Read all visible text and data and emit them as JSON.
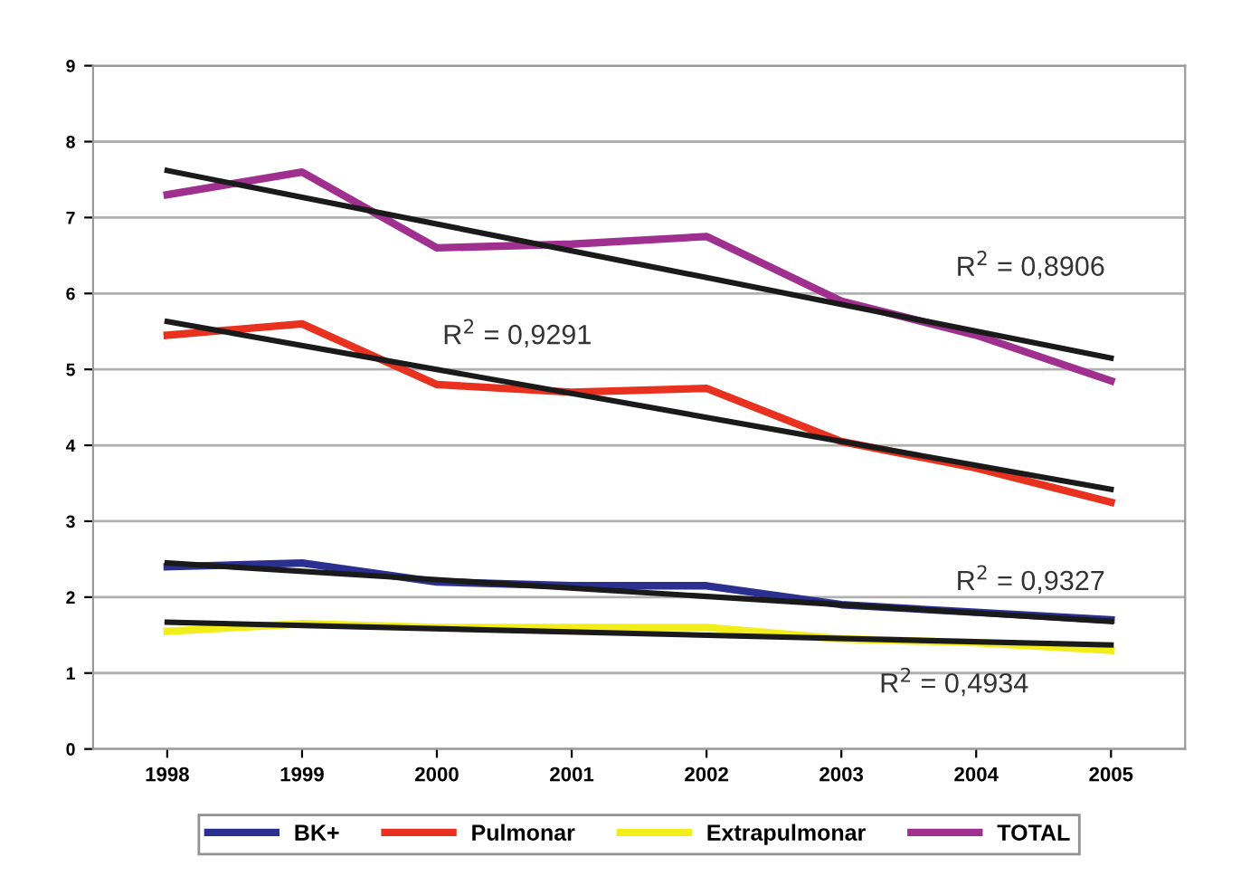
{
  "chart_data": {
    "type": "line",
    "categories": [
      "1998",
      "1999",
      "2000",
      "2001",
      "2002",
      "2003",
      "2004",
      "2005"
    ],
    "series": [
      {
        "name": "BK+",
        "color": "#2b2f8f",
        "values": [
          2.4,
          2.45,
          2.2,
          2.15,
          2.15,
          1.9,
          1.8,
          1.7
        ]
      },
      {
        "name": "Pulmonar",
        "color": "#e8311e",
        "values": [
          5.45,
          5.6,
          4.8,
          4.7,
          4.75,
          4.05,
          3.7,
          3.25
        ]
      },
      {
        "name": "Extrapulmonar",
        "color": "#f2ee1a",
        "values": [
          1.55,
          1.65,
          1.6,
          1.6,
          1.6,
          1.45,
          1.4,
          1.3
        ]
      },
      {
        "name": "TOTAL",
        "color": "#a0308f",
        "values": [
          7.3,
          7.6,
          6.6,
          6.65,
          6.75,
          5.9,
          5.45,
          4.85
        ]
      },
      {
        "color": "#1a1a1a",
        "values": [
          7.62,
          null,
          null,
          null,
          null,
          null,
          null,
          5.15
        ]
      },
      {
        "color": "#1a1a1a",
        "values": [
          5.63,
          null,
          null,
          null,
          null,
          null,
          null,
          3.42
        ]
      },
      {
        "color": "#1a1a1a",
        "values": [
          2.45,
          null,
          null,
          null,
          null,
          null,
          null,
          1.68
        ]
      },
      {
        "color": "#1a1a1a",
        "values": [
          1.67,
          null,
          null,
          null,
          null,
          null,
          null,
          1.37
        ]
      }
    ],
    "annotations": [
      "R$^{2}$ = 0,8906",
      "R$^{2}$ = 0,9291",
      "R$^{2}$ = 0,9327",
      "R$^{2}$ = 0,4934"
    ],
    "ylim": [
      0,
      9
    ],
    "yticks": [
      0,
      1,
      2,
      3,
      4,
      5,
      6,
      7,
      8,
      9
    ],
    "grid": "y",
    "legend": "bottom",
    "marker": "none",
    "line_style": "solid"
  }
}
